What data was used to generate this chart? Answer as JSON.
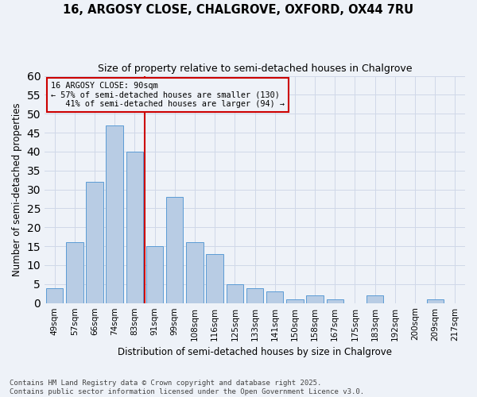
{
  "title1": "16, ARGOSY CLOSE, CHALGROVE, OXFORD, OX44 7RU",
  "title2": "Size of property relative to semi-detached houses in Chalgrove",
  "xlabel": "Distribution of semi-detached houses by size in Chalgrove",
  "ylabel": "Number of semi-detached properties",
  "categories": [
    "49sqm",
    "57sqm",
    "66sqm",
    "74sqm",
    "83sqm",
    "91sqm",
    "99sqm",
    "108sqm",
    "116sqm",
    "125sqm",
    "133sqm",
    "141sqm",
    "150sqm",
    "158sqm",
    "167sqm",
    "175sqm",
    "183sqm",
    "192sqm",
    "200sqm",
    "209sqm",
    "217sqm"
  ],
  "values": [
    4,
    16,
    32,
    47,
    40,
    15,
    28,
    16,
    13,
    5,
    4,
    3,
    1,
    2,
    1,
    0,
    2,
    0,
    0,
    1,
    0
  ],
  "bar_color": "#b8cce4",
  "bar_edge_color": "#5b9bd5",
  "grid_color": "#d0d8e8",
  "background_color": "#eef2f8",
  "vline_bin_index": 5,
  "vline_color": "#cc0000",
  "annotation_line1": "16 ARGOSY CLOSE: 90sqm",
  "annotation_line2": "← 57% of semi-detached houses are smaller (130)",
  "annotation_line3": "   41% of semi-detached houses are larger (94) →",
  "annotation_box_edge": "#cc0000",
  "footer": "Contains HM Land Registry data © Crown copyright and database right 2025.\nContains public sector information licensed under the Open Government Licence v3.0.",
  "ylim_max": 60,
  "yticks": [
    0,
    5,
    10,
    15,
    20,
    25,
    30,
    35,
    40,
    45,
    50,
    55,
    60
  ]
}
